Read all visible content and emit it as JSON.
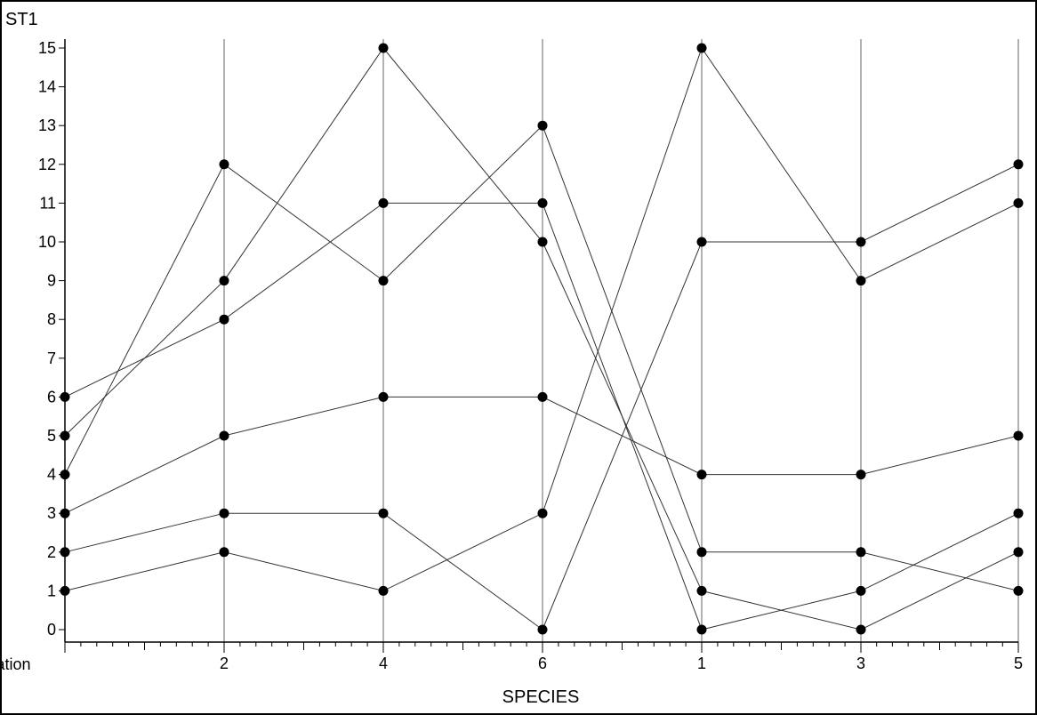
{
  "chart_data": {
    "type": "line",
    "title": "",
    "ylabel": "ST1",
    "xlabel": "SPECIES",
    "categories": [
      "station",
      "2",
      "4",
      "6",
      "1",
      "3",
      "5"
    ],
    "ylim": [
      0,
      15
    ],
    "yticks": [
      0,
      1,
      2,
      3,
      4,
      5,
      6,
      7,
      8,
      9,
      10,
      11,
      12,
      13,
      14,
      15
    ],
    "grid": "vertical lines at each category",
    "legend": "none",
    "series": [
      {
        "values": [
          1,
          2,
          1,
          3,
          15,
          9,
          11
        ]
      },
      {
        "values": [
          2,
          3,
          3,
          0,
          10,
          10,
          12
        ]
      },
      {
        "values": [
          3,
          5,
          6,
          6,
          4,
          4,
          5
        ]
      },
      {
        "values": [
          4,
          12,
          9,
          13,
          2,
          2,
          1
        ]
      },
      {
        "values": [
          5,
          9,
          15,
          10,
          1,
          0,
          2
        ]
      },
      {
        "values": [
          6,
          8,
          11,
          11,
          0,
          1,
          3
        ]
      }
    ]
  }
}
